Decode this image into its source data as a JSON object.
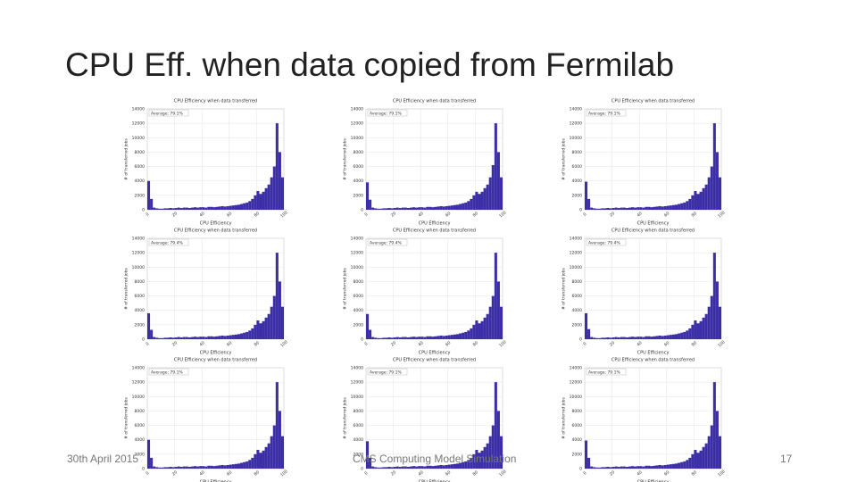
{
  "slide": {
    "title": "CPU Eff. when data copied from Fermilab",
    "date": "30th April 2015",
    "footer": "CMS Computing Model Simulation",
    "page_number": "17"
  },
  "chart_data": [
    {
      "type": "histogram",
      "title": "CPU Efficiency when data transferred",
      "annotation": "Average: 79.1%",
      "xlabel": "CPU Efficiency",
      "ylabel": "# of transferred jobs",
      "color": "#3b2ea6",
      "grid": true,
      "xlim": [
        0,
        100
      ],
      "ylim": [
        0,
        14000
      ],
      "xticks": [
        0,
        20,
        40,
        60,
        80,
        100
      ],
      "yticks": [
        0,
        2000,
        4000,
        6000,
        8000,
        10000,
        12000,
        14000
      ],
      "bins": [
        0,
        2,
        4,
        6,
        8,
        10,
        12,
        14,
        16,
        18,
        20,
        22,
        24,
        26,
        28,
        30,
        32,
        34,
        36,
        38,
        40,
        42,
        44,
        46,
        48,
        50,
        52,
        54,
        56,
        58,
        60,
        62,
        64,
        66,
        68,
        70,
        72,
        74,
        76,
        78,
        80,
        82,
        84,
        86,
        88,
        90,
        92,
        94,
        96,
        98,
        100
      ],
      "counts": [
        4000,
        1500,
        300,
        200,
        150,
        150,
        200,
        200,
        250,
        200,
        250,
        300,
        250,
        300,
        300,
        250,
        300,
        350,
        300,
        350,
        350,
        300,
        400,
        400,
        350,
        400,
        450,
        500,
        450,
        500,
        550,
        600,
        650,
        700,
        800,
        900,
        1000,
        1200,
        1500,
        2000,
        2600,
        2200,
        2500,
        3000,
        3500,
        4500,
        6000,
        12000,
        8000,
        4500
      ]
    },
    {
      "type": "histogram",
      "title": "CPU Efficiency when data transferred",
      "annotation": "Average: 79.1%",
      "xlabel": "CPU Efficiency",
      "ylabel": "# of transferred jobs",
      "color": "#3b2ea6",
      "grid": true,
      "xlim": [
        0,
        100
      ],
      "ylim": [
        0,
        14000
      ],
      "xticks": [
        0,
        20,
        40,
        60,
        80,
        100
      ],
      "yticks": [
        0,
        2000,
        4000,
        6000,
        8000,
        10000,
        12000,
        14000
      ],
      "bins": [
        0,
        2,
        4,
        6,
        8,
        10,
        12,
        14,
        16,
        18,
        20,
        22,
        24,
        26,
        28,
        30,
        32,
        34,
        36,
        38,
        40,
        42,
        44,
        46,
        48,
        50,
        52,
        54,
        56,
        58,
        60,
        62,
        64,
        66,
        68,
        70,
        72,
        74,
        76,
        78,
        80,
        82,
        84,
        86,
        88,
        90,
        92,
        94,
        96,
        98,
        100
      ],
      "counts": [
        3800,
        1400,
        300,
        200,
        150,
        150,
        200,
        200,
        250,
        200,
        250,
        300,
        250,
        300,
        300,
        250,
        300,
        350,
        300,
        350,
        350,
        300,
        400,
        400,
        350,
        400,
        450,
        500,
        450,
        500,
        550,
        600,
        650,
        700,
        800,
        900,
        1000,
        1200,
        1500,
        2000,
        2500,
        2200,
        2500,
        3000,
        3500,
        4500,
        6200,
        12000,
        8000,
        4500
      ]
    },
    {
      "type": "histogram",
      "title": "CPU Efficiency when data transferred",
      "annotation": "Average: 79.1%",
      "xlabel": "CPU Efficiency",
      "ylabel": "# of transferred jobs",
      "color": "#3b2ea6",
      "grid": true,
      "xlim": [
        0,
        100
      ],
      "ylim": [
        0,
        14000
      ],
      "xticks": [
        0,
        20,
        40,
        60,
        80,
        100
      ],
      "yticks": [
        0,
        2000,
        4000,
        6000,
        8000,
        10000,
        12000,
        14000
      ],
      "bins": [
        0,
        2,
        4,
        6,
        8,
        10,
        12,
        14,
        16,
        18,
        20,
        22,
        24,
        26,
        28,
        30,
        32,
        34,
        36,
        38,
        40,
        42,
        44,
        46,
        48,
        50,
        52,
        54,
        56,
        58,
        60,
        62,
        64,
        66,
        68,
        70,
        72,
        74,
        76,
        78,
        80,
        82,
        84,
        86,
        88,
        90,
        92,
        94,
        96,
        98,
        100
      ],
      "counts": [
        3900,
        1500,
        300,
        200,
        150,
        150,
        200,
        200,
        250,
        200,
        250,
        300,
        250,
        300,
        300,
        250,
        300,
        350,
        300,
        350,
        350,
        300,
        400,
        400,
        350,
        400,
        450,
        500,
        450,
        500,
        550,
        600,
        650,
        700,
        800,
        900,
        1000,
        1200,
        1500,
        2000,
        2600,
        2200,
        2500,
        3000,
        3500,
        4500,
        6000,
        12000,
        8000,
        4500
      ]
    },
    {
      "type": "histogram",
      "title": "CPU Efficiency when data transferred",
      "annotation": "Average: 79.4%",
      "xlabel": "CPU Efficiency",
      "ylabel": "# of transferred jobs",
      "color": "#3b2ea6",
      "grid": true,
      "xlim": [
        0,
        100
      ],
      "ylim": [
        0,
        14000
      ],
      "xticks": [
        0,
        20,
        40,
        60,
        80,
        100
      ],
      "yticks": [
        0,
        2000,
        4000,
        6000,
        8000,
        10000,
        12000,
        14000
      ],
      "bins": [
        0,
        2,
        4,
        6,
        8,
        10,
        12,
        14,
        16,
        18,
        20,
        22,
        24,
        26,
        28,
        30,
        32,
        34,
        36,
        38,
        40,
        42,
        44,
        46,
        48,
        50,
        52,
        54,
        56,
        58,
        60,
        62,
        64,
        66,
        68,
        70,
        72,
        74,
        76,
        78,
        80,
        82,
        84,
        86,
        88,
        90,
        92,
        94,
        96,
        98,
        100
      ],
      "counts": [
        3600,
        1300,
        300,
        200,
        150,
        150,
        200,
        200,
        250,
        200,
        250,
        300,
        250,
        300,
        300,
        250,
        300,
        350,
        300,
        350,
        350,
        300,
        400,
        400,
        350,
        400,
        450,
        500,
        450,
        500,
        550,
        600,
        650,
        700,
        800,
        900,
        1000,
        1200,
        1500,
        2000,
        2600,
        2200,
        2500,
        3000,
        3500,
        4500,
        6000,
        12000,
        8000,
        4500
      ]
    },
    {
      "type": "histogram",
      "title": "CPU Efficiency when data transferred",
      "annotation": "Average: 79.4%",
      "xlabel": "CPU Efficiency",
      "ylabel": "# of transferred jobs",
      "color": "#3b2ea6",
      "grid": true,
      "xlim": [
        0,
        100
      ],
      "ylim": [
        0,
        14000
      ],
      "xticks": [
        0,
        20,
        40,
        60,
        80,
        100
      ],
      "yticks": [
        0,
        2000,
        4000,
        6000,
        8000,
        10000,
        12000,
        14000
      ],
      "bins": [
        0,
        2,
        4,
        6,
        8,
        10,
        12,
        14,
        16,
        18,
        20,
        22,
        24,
        26,
        28,
        30,
        32,
        34,
        36,
        38,
        40,
        42,
        44,
        46,
        48,
        50,
        52,
        54,
        56,
        58,
        60,
        62,
        64,
        66,
        68,
        70,
        72,
        74,
        76,
        78,
        80,
        82,
        84,
        86,
        88,
        90,
        92,
        94,
        96,
        98,
        100
      ],
      "counts": [
        3500,
        1300,
        300,
        200,
        150,
        150,
        200,
        200,
        250,
        200,
        250,
        300,
        250,
        300,
        300,
        250,
        300,
        350,
        300,
        350,
        350,
        300,
        400,
        400,
        350,
        400,
        450,
        500,
        450,
        500,
        550,
        600,
        650,
        700,
        800,
        900,
        1000,
        1200,
        1500,
        2000,
        2600,
        2200,
        2500,
        3000,
        3500,
        4500,
        6000,
        12000,
        8000,
        4500
      ]
    },
    {
      "type": "histogram",
      "title": "CPU Efficiency when data transferred",
      "annotation": "Average: 79.4%",
      "xlabel": "CPU Efficiency",
      "ylabel": "# of transferred jobs",
      "color": "#3b2ea6",
      "grid": true,
      "xlim": [
        0,
        100
      ],
      "ylim": [
        0,
        14000
      ],
      "xticks": [
        0,
        20,
        40,
        60,
        80,
        100
      ],
      "yticks": [
        0,
        2000,
        4000,
        6000,
        8000,
        10000,
        12000,
        14000
      ],
      "bins": [
        0,
        2,
        4,
        6,
        8,
        10,
        12,
        14,
        16,
        18,
        20,
        22,
        24,
        26,
        28,
        30,
        32,
        34,
        36,
        38,
        40,
        42,
        44,
        46,
        48,
        50,
        52,
        54,
        56,
        58,
        60,
        62,
        64,
        66,
        68,
        70,
        72,
        74,
        76,
        78,
        80,
        82,
        84,
        86,
        88,
        90,
        92,
        94,
        96,
        98,
        100
      ],
      "counts": [
        3600,
        1400,
        300,
        200,
        150,
        150,
        200,
        200,
        250,
        200,
        250,
        300,
        250,
        300,
        300,
        250,
        300,
        350,
        300,
        350,
        350,
        300,
        400,
        400,
        350,
        400,
        450,
        500,
        450,
        500,
        550,
        600,
        650,
        700,
        800,
        900,
        1000,
        1200,
        1500,
        2000,
        2600,
        2200,
        2500,
        3000,
        3500,
        4500,
        6000,
        12000,
        8000,
        4500
      ]
    },
    {
      "type": "histogram",
      "title": "CPU Efficiency when data transferred",
      "annotation": "Average: 79.1%",
      "xlabel": "CPU Efficiency",
      "ylabel": "# of transferred jobs",
      "color": "#3b2ea6",
      "grid": true,
      "xlim": [
        0,
        100
      ],
      "ylim": [
        0,
        14000
      ],
      "xticks": [
        0,
        20,
        40,
        60,
        80,
        100
      ],
      "yticks": [
        0,
        2000,
        4000,
        6000,
        8000,
        10000,
        12000,
        14000
      ],
      "bins": [
        0,
        2,
        4,
        6,
        8,
        10,
        12,
        14,
        16,
        18,
        20,
        22,
        24,
        26,
        28,
        30,
        32,
        34,
        36,
        38,
        40,
        42,
        44,
        46,
        48,
        50,
        52,
        54,
        56,
        58,
        60,
        62,
        64,
        66,
        68,
        70,
        72,
        74,
        76,
        78,
        80,
        82,
        84,
        86,
        88,
        90,
        92,
        94,
        96,
        98,
        100
      ],
      "counts": [
        4000,
        1500,
        300,
        200,
        150,
        150,
        200,
        200,
        250,
        200,
        250,
        300,
        250,
        300,
        300,
        250,
        300,
        350,
        300,
        350,
        350,
        300,
        400,
        400,
        350,
        400,
        450,
        500,
        450,
        500,
        550,
        600,
        650,
        700,
        800,
        900,
        1000,
        1200,
        1500,
        2000,
        2600,
        2200,
        2500,
        3000,
        3500,
        4500,
        6000,
        12000,
        8000,
        4500
      ]
    },
    {
      "type": "histogram",
      "title": "CPU Efficiency when data transferred",
      "annotation": "Average: 79.1%",
      "xlabel": "CPU Efficiency",
      "ylabel": "# of transferred jobs",
      "color": "#3b2ea6",
      "grid": true,
      "xlim": [
        0,
        100
      ],
      "ylim": [
        0,
        14000
      ],
      "xticks": [
        0,
        20,
        40,
        60,
        80,
        100
      ],
      "yticks": [
        0,
        2000,
        4000,
        6000,
        8000,
        10000,
        12000,
        14000
      ],
      "bins": [
        0,
        2,
        4,
        6,
        8,
        10,
        12,
        14,
        16,
        18,
        20,
        22,
        24,
        26,
        28,
        30,
        32,
        34,
        36,
        38,
        40,
        42,
        44,
        46,
        48,
        50,
        52,
        54,
        56,
        58,
        60,
        62,
        64,
        66,
        68,
        70,
        72,
        74,
        76,
        78,
        80,
        82,
        84,
        86,
        88,
        90,
        92,
        94,
        96,
        98,
        100
      ],
      "counts": [
        3800,
        1500,
        300,
        200,
        150,
        150,
        200,
        200,
        250,
        200,
        250,
        300,
        250,
        300,
        300,
        250,
        300,
        350,
        300,
        350,
        350,
        300,
        400,
        400,
        350,
        400,
        450,
        500,
        450,
        500,
        550,
        600,
        650,
        700,
        800,
        900,
        1000,
        1200,
        1500,
        2000,
        2600,
        2200,
        2500,
        3000,
        3500,
        4500,
        6000,
        12000,
        8000,
        4500
      ]
    },
    {
      "type": "histogram",
      "title": "CPU Efficiency when data transferred",
      "annotation": "Average: 79.1%",
      "xlabel": "CPU Efficiency",
      "ylabel": "# of transferred jobs",
      "color": "#3b2ea6",
      "grid": true,
      "xlim": [
        0,
        100
      ],
      "ylim": [
        0,
        14000
      ],
      "xticks": [
        0,
        20,
        40,
        60,
        80,
        100
      ],
      "yticks": [
        0,
        2000,
        4000,
        6000,
        8000,
        10000,
        12000,
        14000
      ],
      "bins": [
        0,
        2,
        4,
        6,
        8,
        10,
        12,
        14,
        16,
        18,
        20,
        22,
        24,
        26,
        28,
        30,
        32,
        34,
        36,
        38,
        40,
        42,
        44,
        46,
        48,
        50,
        52,
        54,
        56,
        58,
        60,
        62,
        64,
        66,
        68,
        70,
        72,
        74,
        76,
        78,
        80,
        82,
        84,
        86,
        88,
        90,
        92,
        94,
        96,
        98,
        100
      ],
      "counts": [
        3900,
        1500,
        300,
        200,
        150,
        150,
        200,
        200,
        250,
        200,
        250,
        300,
        250,
        300,
        300,
        250,
        300,
        350,
        300,
        350,
        350,
        300,
        400,
        400,
        350,
        400,
        450,
        500,
        450,
        500,
        550,
        600,
        650,
        700,
        800,
        900,
        1000,
        1200,
        1500,
        2000,
        2600,
        2200,
        2500,
        3000,
        3500,
        4500,
        6000,
        12000,
        8000,
        4500
      ]
    }
  ]
}
